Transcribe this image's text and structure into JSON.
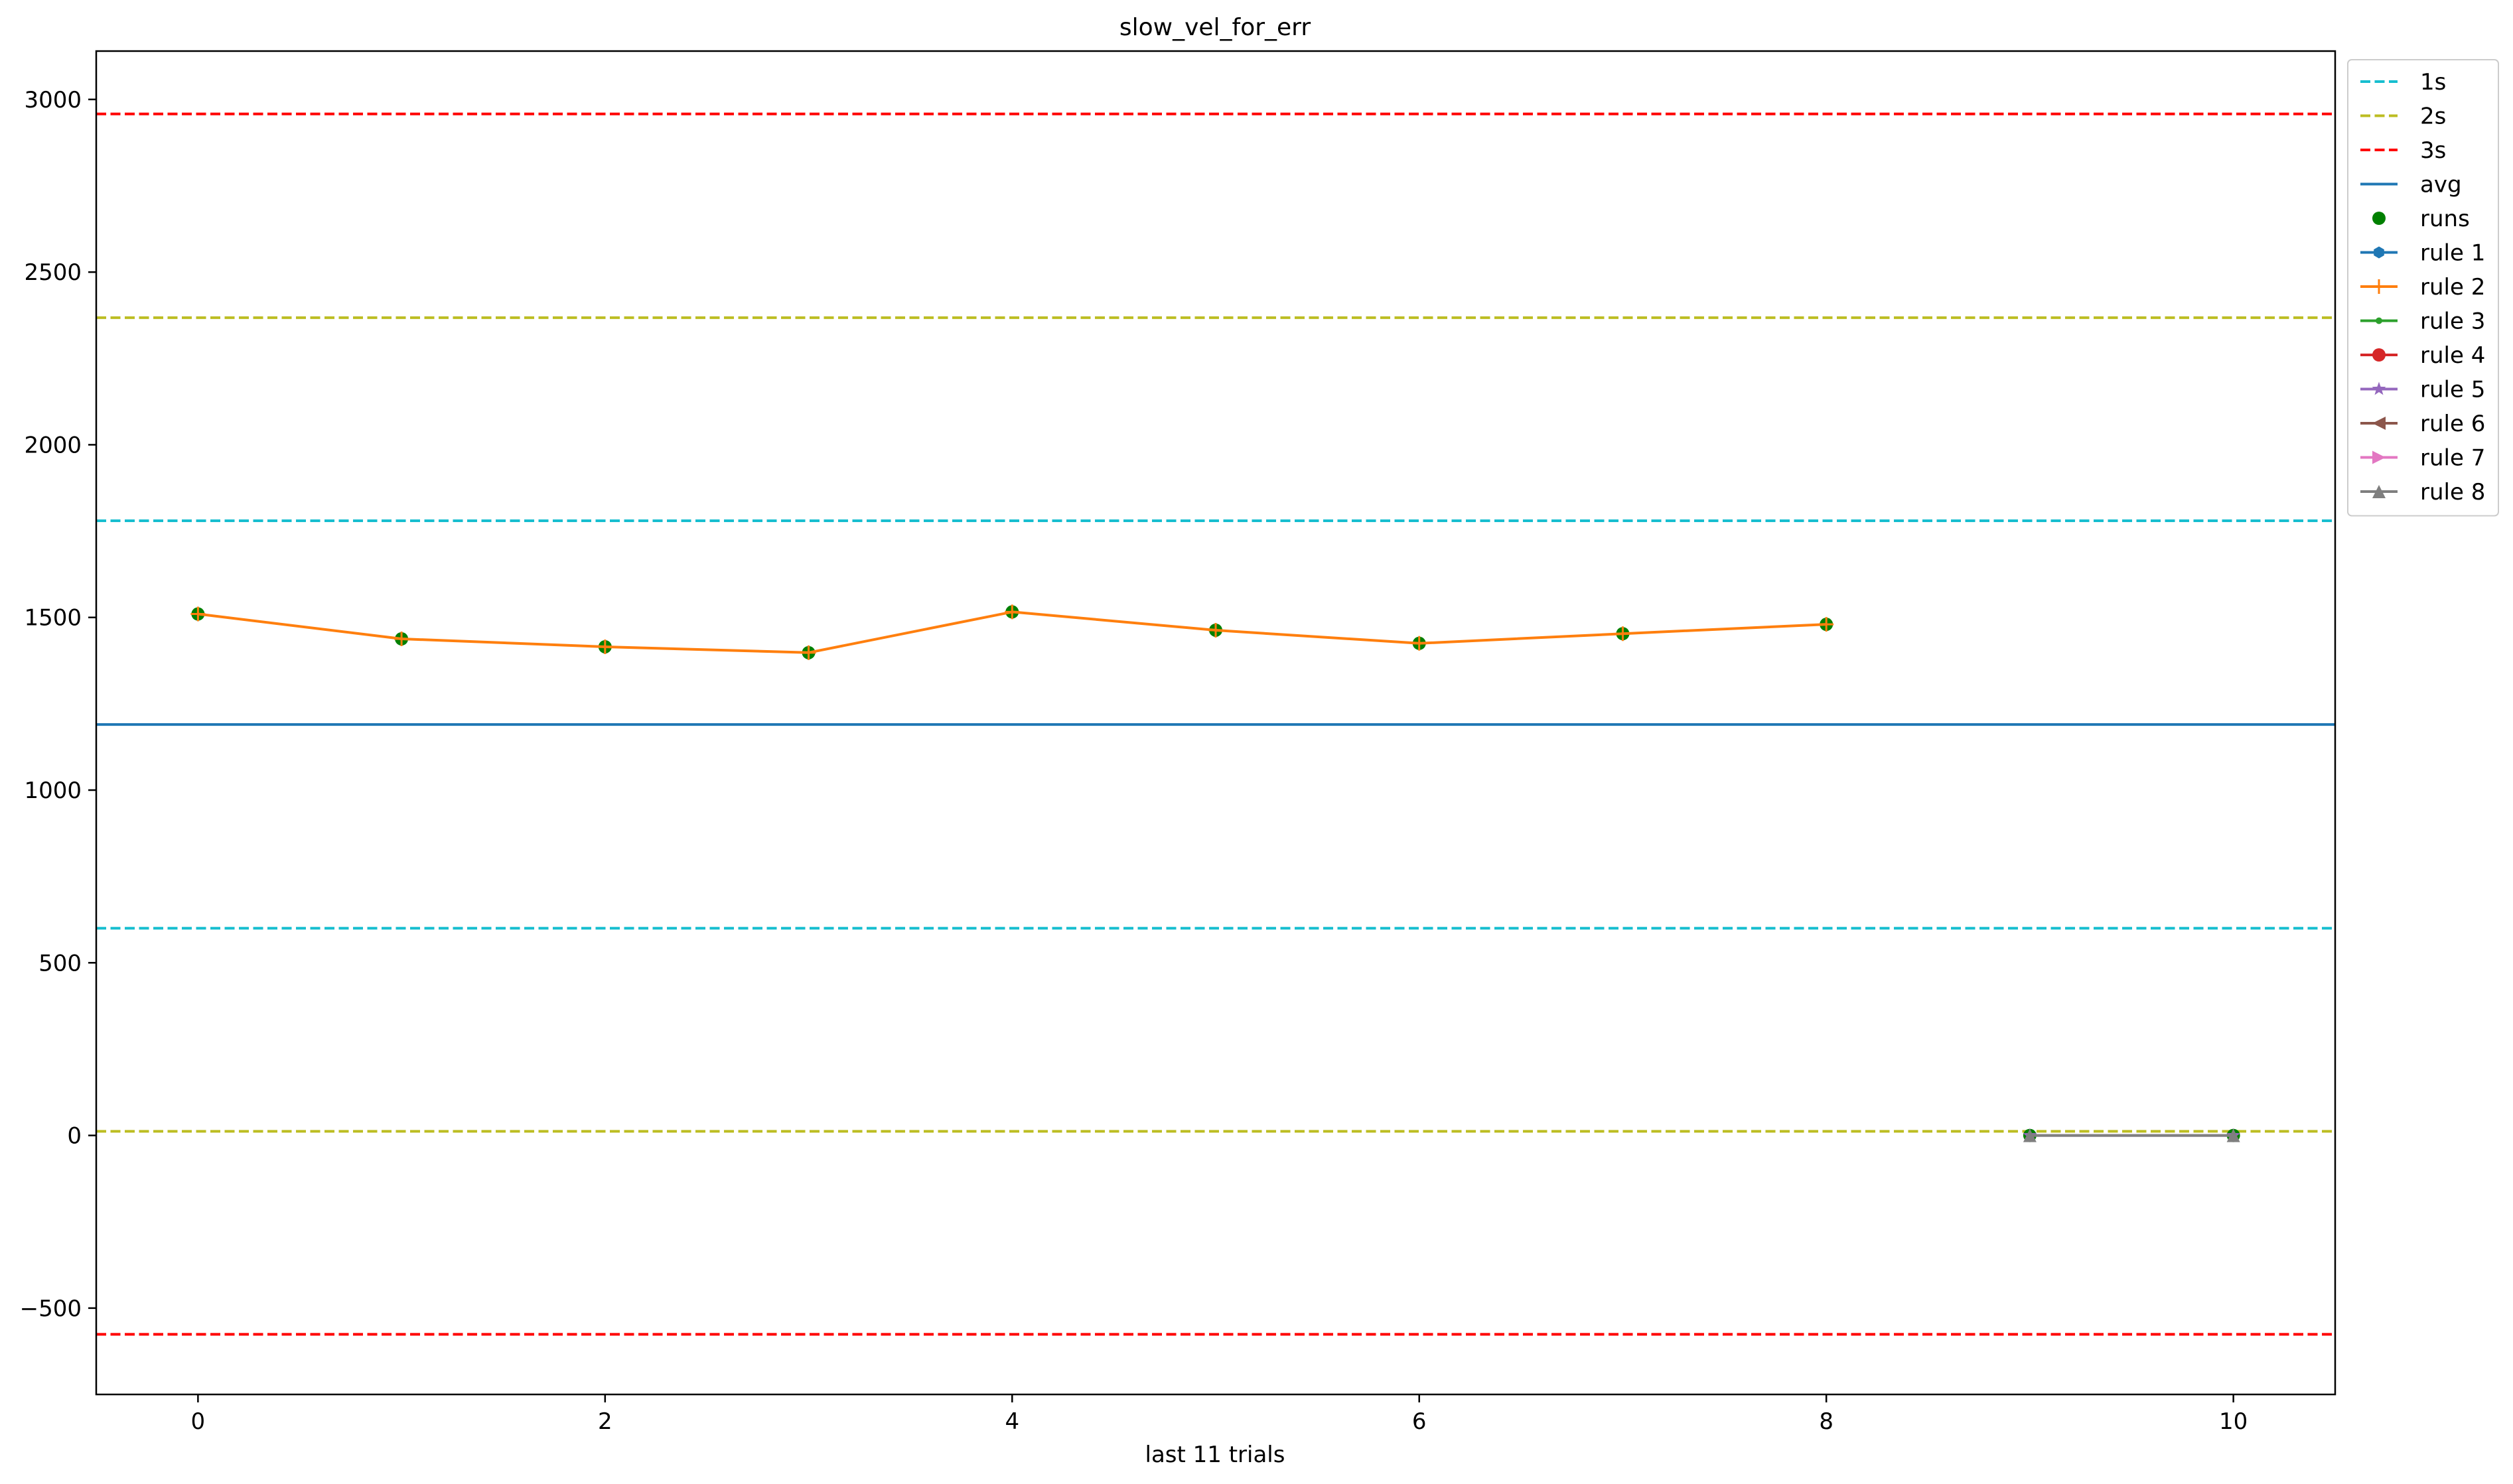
{
  "chart_data": {
    "type": "line",
    "title": "slow_vel_for_err",
    "xlabel": "last 11 trials",
    "ylabel": "",
    "xlim": [
      -0.5,
      10.5
    ],
    "ylim": [
      -750,
      3140
    ],
    "xticks": [
      0,
      2,
      4,
      6,
      8,
      10
    ],
    "yticks": [
      -500,
      0,
      500,
      1000,
      1500,
      2000,
      2500,
      3000
    ],
    "ytick_labels": [
      "−500",
      "0",
      "500",
      "1000",
      "1500",
      "2000",
      "2500",
      "3000"
    ],
    "grid": false,
    "legend_position": "outside top-right",
    "reference_lines": [
      {
        "name": "1s",
        "values": [
          1780,
          600
        ],
        "color": "#17becf",
        "style": "dashed"
      },
      {
        "name": "2s",
        "values": [
          2368,
          12
        ],
        "color": "#bcbd22",
        "style": "dashed"
      },
      {
        "name": "3s",
        "values": [
          2958,
          -576
        ],
        "color": "#ff0000",
        "style": "dashed"
      },
      {
        "name": "avg",
        "values": [
          1190
        ],
        "color": "#1f77b4",
        "style": "solid"
      }
    ],
    "runs": {
      "name": "runs",
      "color": "#008000",
      "x": [
        0,
        1,
        2,
        3,
        4,
        5,
        6,
        7,
        8,
        9,
        10
      ],
      "y": [
        1510,
        1438,
        1415,
        1398,
        1516,
        1463,
        1425,
        1453,
        1480,
        0,
        0
      ]
    },
    "series": [
      {
        "name": "rule 1",
        "color": "#1f77b4",
        "marker": "hexagon",
        "x": [],
        "y": []
      },
      {
        "name": "rule 2",
        "color": "#ff7f0e",
        "marker": "plus",
        "x": [
          0,
          1,
          2,
          3,
          4,
          5,
          6,
          7,
          8
        ],
        "y": [
          1510,
          1438,
          1415,
          1398,
          1516,
          1463,
          1425,
          1453,
          1480
        ]
      },
      {
        "name": "rule 3",
        "color": "#2ca02c",
        "marker": "point",
        "x": [],
        "y": []
      },
      {
        "name": "rule 4",
        "color": "#d62728",
        "marker": "circle",
        "x": [],
        "y": []
      },
      {
        "name": "rule 5",
        "color": "#9467bd",
        "marker": "star",
        "x": [
          9,
          10
        ],
        "y": [
          0,
          0
        ]
      },
      {
        "name": "rule 6",
        "color": "#8c564b",
        "marker": "triangle-left",
        "x": [],
        "y": []
      },
      {
        "name": "rule 7",
        "color": "#e377c2",
        "marker": "triangle-right",
        "x": [],
        "y": []
      },
      {
        "name": "rule 8",
        "color": "#7f7f7f",
        "marker": "triangle-up",
        "x": [
          9,
          10
        ],
        "y": [
          0,
          0
        ]
      }
    ]
  }
}
